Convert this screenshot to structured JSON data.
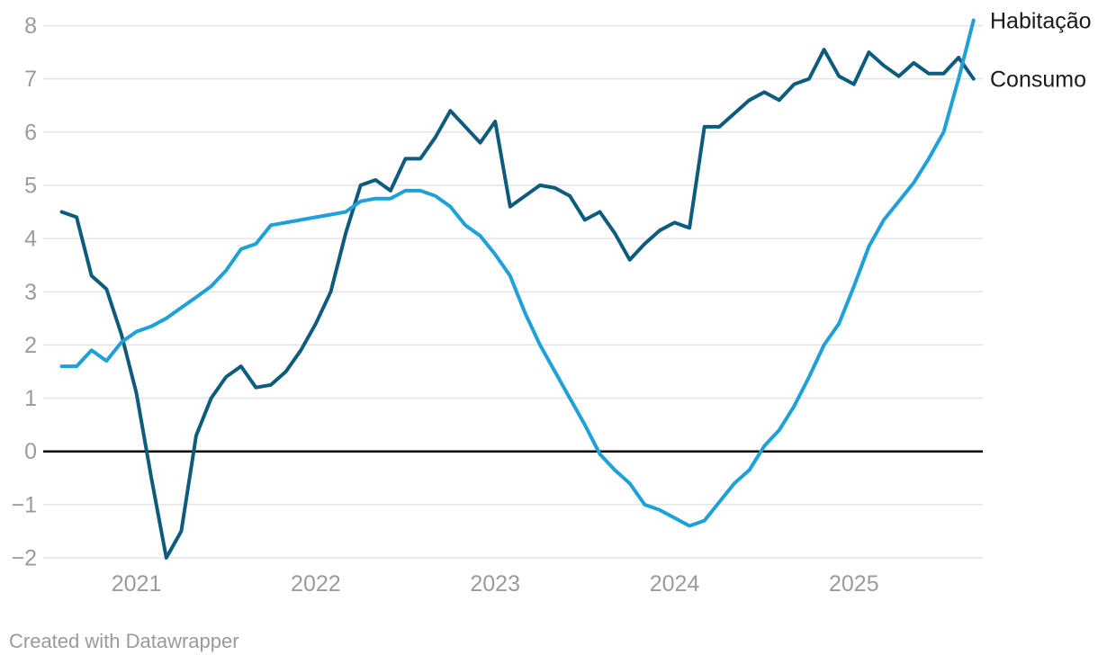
{
  "footer": {
    "text": "Created with Datawrapper"
  },
  "chart_data": {
    "type": "line",
    "x": [
      "2020-08",
      "2020-09",
      "2020-10",
      "2020-11",
      "2020-12",
      "2021-01",
      "2021-02",
      "2021-03",
      "2021-04",
      "2021-05",
      "2021-06",
      "2021-07",
      "2021-08",
      "2021-09",
      "2021-10",
      "2021-11",
      "2021-12",
      "2022-01",
      "2022-02",
      "2022-03",
      "2022-04",
      "2022-05",
      "2022-06",
      "2022-07",
      "2022-08",
      "2022-09",
      "2022-10",
      "2022-11",
      "2022-12",
      "2023-01",
      "2023-02",
      "2023-03",
      "2023-04",
      "2023-05",
      "2023-06",
      "2023-07",
      "2023-08",
      "2023-09",
      "2023-10",
      "2023-11",
      "2023-12",
      "2024-01",
      "2024-02",
      "2024-03",
      "2024-04",
      "2024-05",
      "2024-06",
      "2024-07",
      "2024-08",
      "2024-09",
      "2024-10",
      "2024-11",
      "2024-12",
      "2025-01",
      "2025-02",
      "2025-03",
      "2025-04",
      "2025-05",
      "2025-06",
      "2025-07",
      "2025-08",
      "2025-09"
    ],
    "x_tick_labels": [
      "2021",
      "2022",
      "2023",
      "2024",
      "2025"
    ],
    "series": [
      {
        "name": "Consumo",
        "color": "#0e5c7d",
        "values": [
          4.5,
          4.4,
          3.3,
          3.05,
          2.2,
          1.1,
          -0.5,
          -2.0,
          -1.5,
          0.3,
          1.0,
          1.4,
          1.6,
          1.2,
          1.25,
          1.5,
          1.9,
          2.4,
          3.0,
          4.1,
          5.0,
          5.1,
          4.9,
          5.5,
          5.5,
          5.9,
          6.4,
          6.1,
          5.8,
          6.2,
          4.6,
          4.8,
          5.0,
          4.95,
          4.8,
          4.35,
          4.5,
          4.1,
          3.6,
          3.9,
          4.15,
          4.3,
          4.2,
          6.1,
          6.1,
          6.35,
          6.6,
          6.75,
          6.6,
          6.9,
          7.0,
          7.55,
          7.05,
          6.9,
          7.5,
          7.25,
          7.05,
          7.3,
          7.1,
          7.1,
          7.4,
          7.0
        ]
      },
      {
        "name": "Habitação",
        "color": "#1ea0d9",
        "values": [
          1.6,
          1.6,
          1.9,
          1.7,
          2.05,
          2.25,
          2.35,
          2.5,
          2.7,
          2.9,
          3.1,
          3.4,
          3.8,
          3.9,
          4.25,
          4.3,
          4.35,
          4.4,
          4.45,
          4.5,
          4.7,
          4.75,
          4.75,
          4.9,
          4.9,
          4.8,
          4.6,
          4.25,
          4.05,
          3.7,
          3.3,
          2.6,
          2.0,
          1.5,
          1.0,
          0.5,
          -0.05,
          -0.35,
          -0.6,
          -1.0,
          -1.1,
          -1.25,
          -1.4,
          -1.3,
          -0.95,
          -0.6,
          -0.35,
          0.1,
          0.4,
          0.85,
          1.4,
          2.0,
          2.4,
          3.1,
          3.85,
          4.35,
          4.7,
          5.05,
          5.5,
          6.0,
          7.0,
          8.1
        ]
      }
    ],
    "title": "",
    "xlabel": "",
    "ylabel": "",
    "ylim": [
      -2,
      8
    ],
    "ytick_step": 1,
    "grid": "horizontal",
    "zero_line": true,
    "legend_position": "right-of-line-end",
    "colors": {
      "grid": "#e4e4e4",
      "zero_line": "#000000",
      "tick_text": "#9b9b9b",
      "legend_text": "#1a1a1a",
      "background": "#ffffff"
    }
  }
}
